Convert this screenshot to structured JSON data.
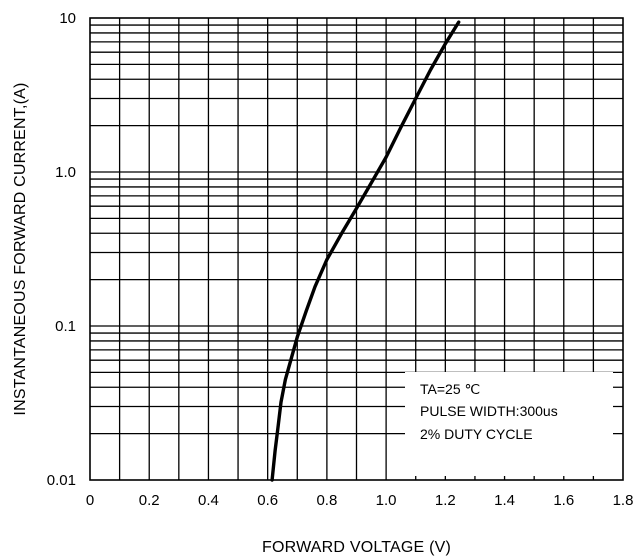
{
  "chart_data": {
    "type": "line",
    "xlabel": "FORWARD VOLTAGE (V)",
    "ylabel": "INSTANTANEOUS FORWARD CURRENT,(A)",
    "xlim": [
      0,
      1.8
    ],
    "ylim": [
      0.01,
      10
    ],
    "y_scale": "log",
    "grid": true,
    "x_ticks": [
      "0",
      "0.2",
      "0.4",
      "0.6",
      "0.8",
      "1.0",
      "1.2",
      "1.4",
      "1.6",
      "1.8"
    ],
    "x_tick_values": [
      0,
      0.2,
      0.4,
      0.6,
      0.8,
      1.0,
      1.2,
      1.4,
      1.6,
      1.8
    ],
    "y_ticks": [
      "0.01",
      "0.1",
      "1.0",
      "10"
    ],
    "y_tick_values": [
      0.01,
      0.1,
      1,
      10
    ],
    "series": [
      {
        "x": [
          0.615,
          0.625,
          0.635,
          0.645,
          0.66,
          0.68,
          0.7,
          0.73,
          0.76,
          0.8,
          0.85,
          0.9,
          0.95,
          1.0,
          1.05,
          1.1,
          1.15,
          1.2,
          1.245
        ],
        "y": [
          0.01,
          0.0155,
          0.022,
          0.032,
          0.045,
          0.062,
          0.085,
          0.125,
          0.18,
          0.27,
          0.4,
          0.58,
          0.85,
          1.25,
          1.95,
          3.0,
          4.6,
          6.8,
          9.4
        ]
      }
    ],
    "annotations": [
      "TA=25 ℃",
      "PULSE WIDTH:300us",
      "2% DUTY CYCLE"
    ]
  }
}
